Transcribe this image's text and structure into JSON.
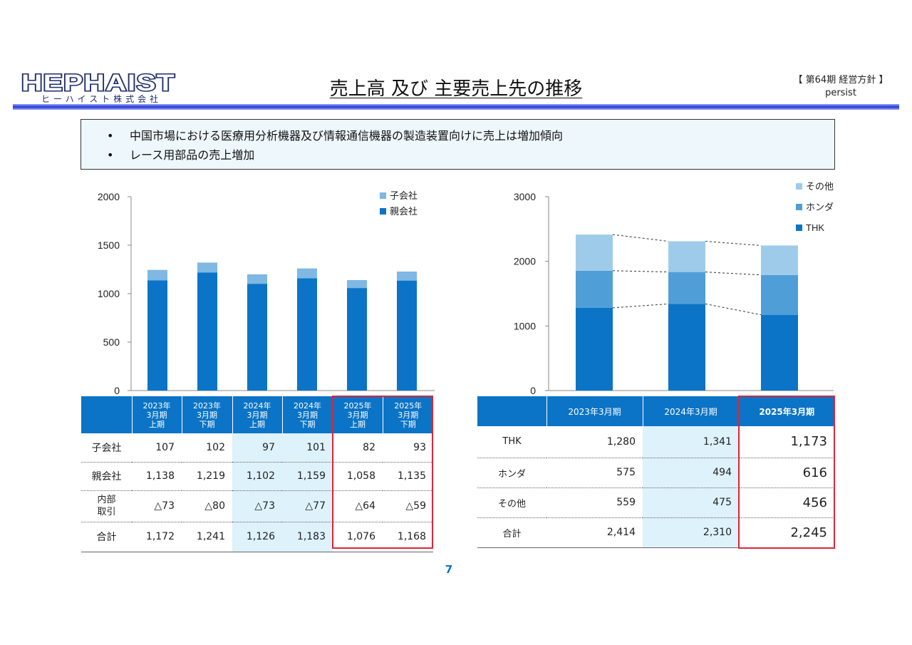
{
  "header": {
    "logo_text": "HEPHAIST",
    "logo_subtext": "ヒーハイスト株式会社",
    "title": "売上高 及び 主要売上先の推移",
    "corner_line1": "【 第64期 経営方針 】",
    "corner_line2": "persist"
  },
  "bullets": {
    "marker": "•",
    "items": [
      "中国市場における医療用分析機器及び情報通信機器の製造装置向けに売上は増加傾向",
      "レース用部品の売上増加"
    ]
  },
  "chart_data": [
    {
      "type": "bar",
      "stacked": true,
      "categories": [
        "2023年3月期上期",
        "2023年3月期下期",
        "2024年3月期上期",
        "2024年3月期下期",
        "2025年3月期上期",
        "2025年3月期下期"
      ],
      "series": [
        {
          "name": "親会社",
          "values": [
            1138,
            1219,
            1102,
            1159,
            1058,
            1135
          ],
          "color": "#0b74c6"
        },
        {
          "name": "子会社",
          "values": [
            107,
            102,
            97,
            101,
            82,
            93
          ],
          "color": "#7fb8e3"
        }
      ],
      "y_ticks": [
        "0",
        "500",
        "1000",
        "1500",
        "2000"
      ],
      "ylim": [
        0,
        2000
      ],
      "legend_position": "top-right",
      "grid": false
    },
    {
      "type": "bar",
      "stacked": true,
      "categories": [
        "2023年3月期",
        "2024年3月期",
        "2025年3月期"
      ],
      "series": [
        {
          "name": "THK",
          "values": [
            1280,
            1341,
            1173
          ],
          "color": "#0b74c6"
        },
        {
          "name": "ホンダ",
          "values": [
            575,
            494,
            616
          ],
          "color": "#509ed8"
        },
        {
          "name": "その他",
          "values": [
            559,
            475,
            456
          ],
          "color": "#9ecbea"
        }
      ],
      "y_ticks": [
        "0",
        "1000",
        "2000",
        "3000"
      ],
      "ylim": [
        0,
        3000
      ],
      "legend_position": "top-right",
      "grid": false,
      "connector_lines": "dashed"
    }
  ],
  "left_table": {
    "headers": [
      [
        "",
        "",
        ""
      ],
      [
        "2023年",
        "3月期",
        "上期"
      ],
      [
        "2023年",
        "3月期",
        "下期"
      ],
      [
        "2024年",
        "3月期",
        "上期"
      ],
      [
        "2024年",
        "3月期",
        "下期"
      ],
      [
        "2025年",
        "3月期",
        "上期"
      ],
      [
        "2025年",
        "3月期",
        "下期"
      ]
    ],
    "rows": [
      {
        "label": "子会社",
        "values": [
          "107",
          "102",
          "97",
          "101",
          "82",
          "93"
        ]
      },
      {
        "label": "親会社",
        "values": [
          "1,138",
          "1,219",
          "1,102",
          "1,159",
          "1,058",
          "1,135"
        ]
      },
      {
        "label": "内部",
        "label2": "取引",
        "values": [
          "△73",
          "△80",
          "△73",
          "△77",
          "△64",
          "△59"
        ]
      },
      {
        "label": "合計",
        "values": [
          "1,172",
          "1,241",
          "1,126",
          "1,183",
          "1,076",
          "1,168"
        ]
      }
    ]
  },
  "right_table": {
    "headers": [
      "",
      "2023年3月期",
      "2024年3月期",
      "2025年3月期"
    ],
    "rows": [
      {
        "label": "THK",
        "values": [
          "1,280",
          "1,341",
          "1,173"
        ]
      },
      {
        "label": "ホンダ",
        "values": [
          "575",
          "494",
          "616"
        ]
      },
      {
        "label": "その他",
        "values": [
          "559",
          "475",
          "456"
        ]
      },
      {
        "label": "合計",
        "values": [
          "2,414",
          "2,310",
          "2,245"
        ]
      }
    ]
  },
  "highlight_colors": {
    "current_period_border": "#d9263a",
    "previous_period_fill": "#ddf2fb",
    "header_fill": "#0b74c6"
  },
  "page_number": "7"
}
